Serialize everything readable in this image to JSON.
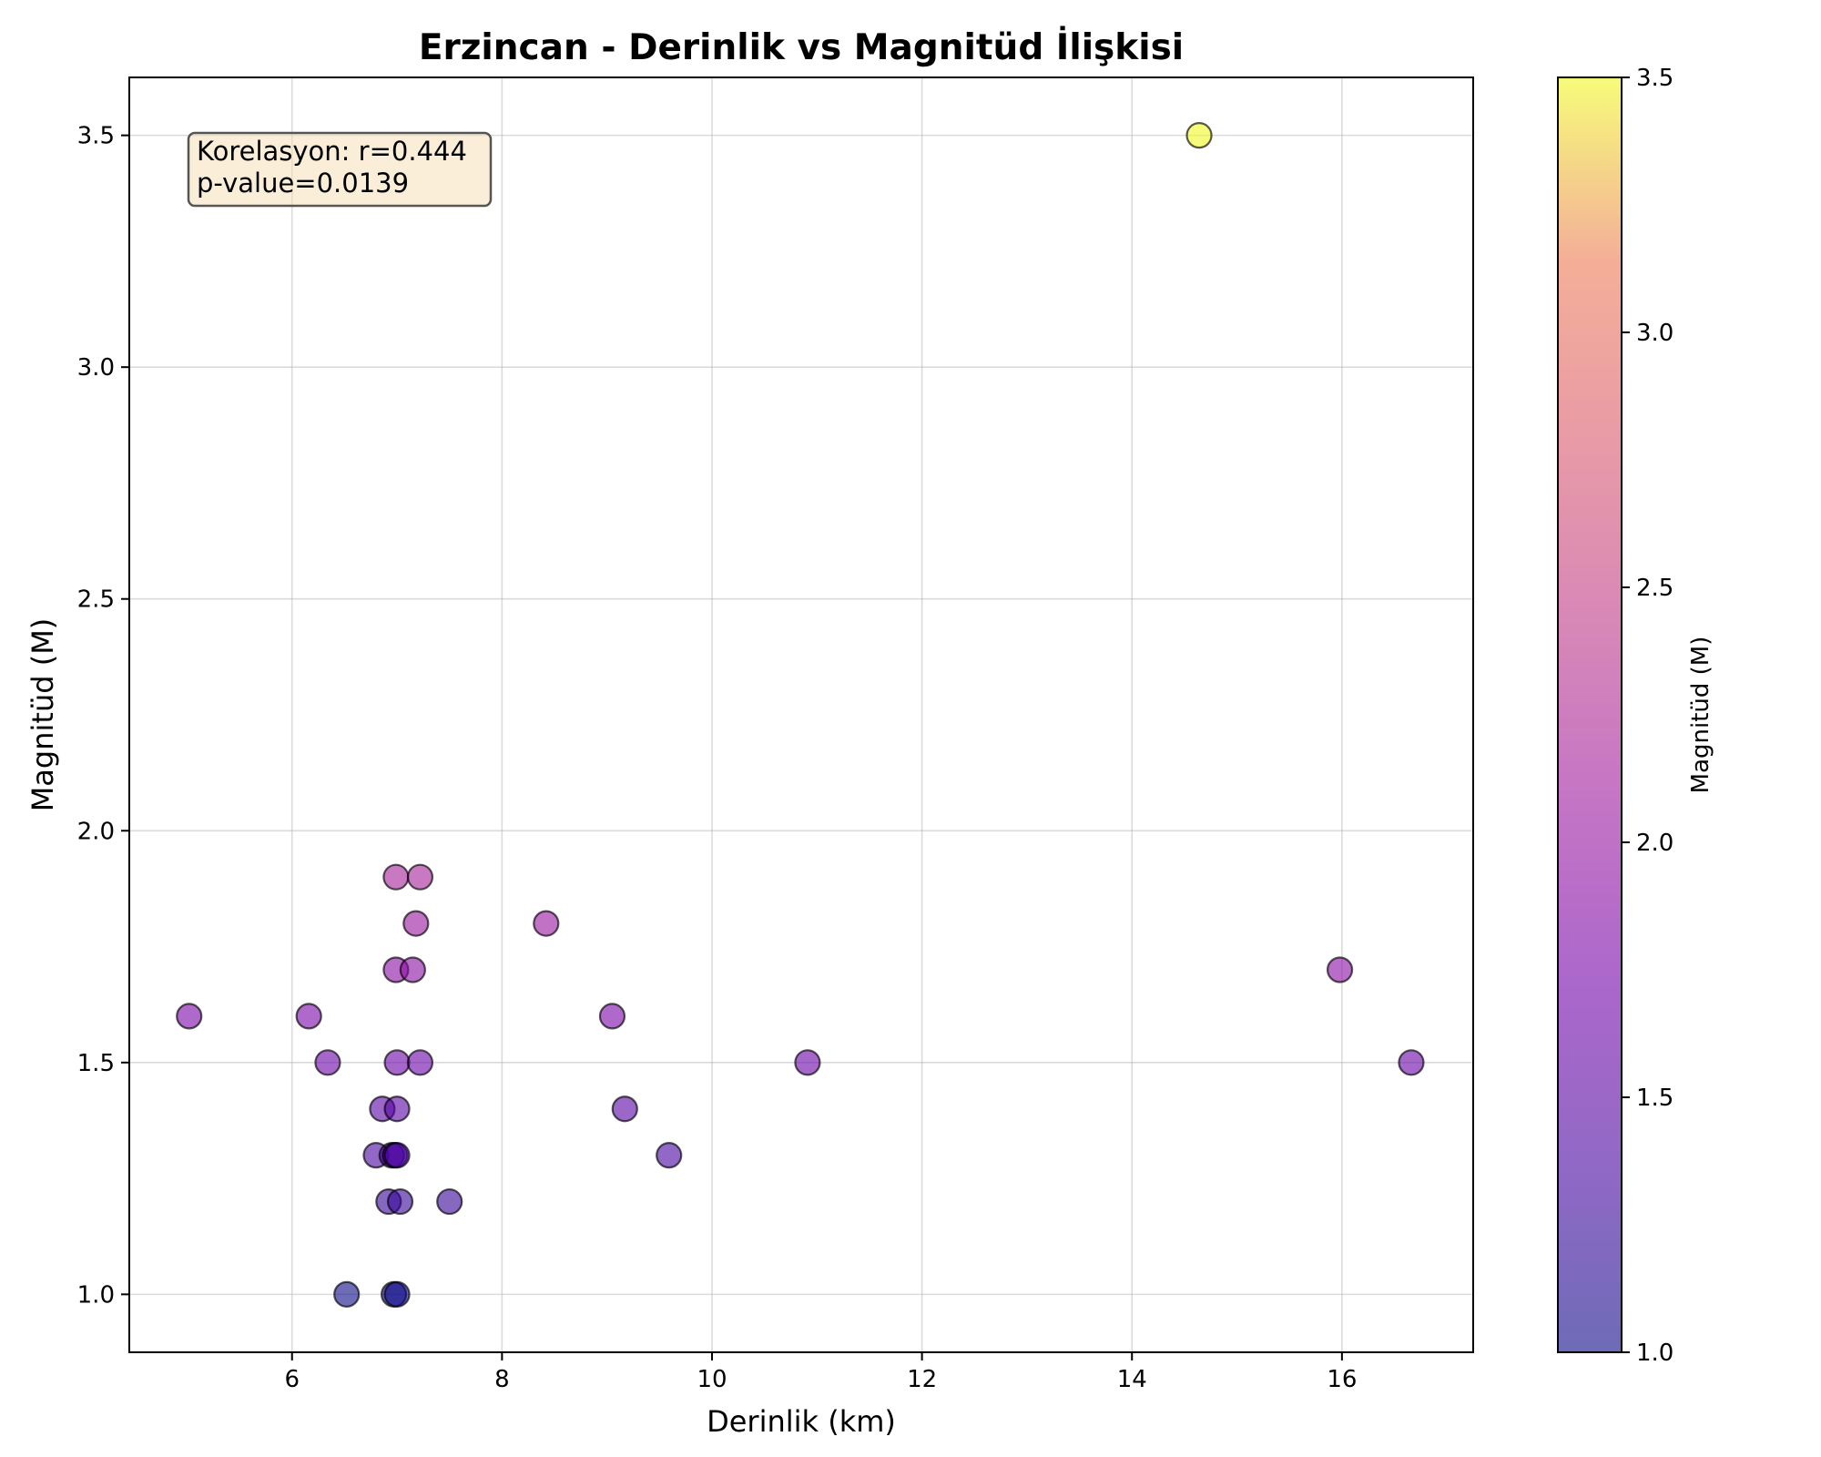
{
  "chart_data": {
    "type": "scatter",
    "title": "Erzincan - Derinlik vs Magnitüd İlişkisi",
    "xlabel": "Derinlik (km)",
    "ylabel": "Magnitüd (M)",
    "xlim": [
      4.45,
      17.25
    ],
    "ylim": [
      0.875,
      3.625
    ],
    "xticks": [
      6,
      8,
      10,
      12,
      14,
      16
    ],
    "yticks": [
      1.0,
      1.5,
      2.0,
      2.5,
      3.0,
      3.5
    ],
    "xtick_labels": [
      "6",
      "8",
      "10",
      "12",
      "14",
      "16"
    ],
    "ytick_labels": [
      "1.0",
      "1.5",
      "2.0",
      "2.5",
      "3.0",
      "3.5"
    ],
    "grid": true,
    "colormap": "plasma",
    "marker_alpha": 0.6,
    "marker_edge_color": "#000000",
    "annotation": {
      "line1": "Korelasyon: r=0.444",
      "line2": "p-value=0.0139",
      "position": "top-left",
      "background": "#f5deb3"
    },
    "colorbar": {
      "label": "Magnitüd (M)",
      "range": [
        1.0,
        3.5
      ],
      "ticks": [
        1.0,
        1.5,
        2.0,
        2.5,
        3.0,
        3.5
      ],
      "tick_labels": [
        "1.0",
        "1.5",
        "2.0",
        "2.5",
        "3.0",
        "3.5"
      ]
    },
    "points": [
      {
        "x": 5.02,
        "y": 1.6
      },
      {
        "x": 6.16,
        "y": 1.6
      },
      {
        "x": 6.34,
        "y": 1.5
      },
      {
        "x": 6.52,
        "y": 1.0
      },
      {
        "x": 6.8,
        "y": 1.3
      },
      {
        "x": 6.86,
        "y": 1.4
      },
      {
        "x": 6.92,
        "y": 1.2
      },
      {
        "x": 6.95,
        "y": 1.3
      },
      {
        "x": 6.97,
        "y": 1.0
      },
      {
        "x": 6.98,
        "y": 1.3
      },
      {
        "x": 6.99,
        "y": 1.9
      },
      {
        "x": 6.99,
        "y": 1.7
      },
      {
        "x": 7.0,
        "y": 1.5
      },
      {
        "x": 7.0,
        "y": 1.4
      },
      {
        "x": 7.0,
        "y": 1.0
      },
      {
        "x": 7.0,
        "y": 1.3
      },
      {
        "x": 7.03,
        "y": 1.2
      },
      {
        "x": 7.15,
        "y": 1.7
      },
      {
        "x": 7.18,
        "y": 1.8
      },
      {
        "x": 7.22,
        "y": 1.5
      },
      {
        "x": 7.22,
        "y": 1.9
      },
      {
        "x": 7.5,
        "y": 1.2
      },
      {
        "x": 8.42,
        "y": 1.8
      },
      {
        "x": 9.05,
        "y": 1.6
      },
      {
        "x": 9.17,
        "y": 1.4
      },
      {
        "x": 9.59,
        "y": 1.3
      },
      {
        "x": 10.91,
        "y": 1.5
      },
      {
        "x": 14.64,
        "y": 3.5
      },
      {
        "x": 15.98,
        "y": 1.7
      },
      {
        "x": 16.66,
        "y": 1.5
      }
    ]
  }
}
